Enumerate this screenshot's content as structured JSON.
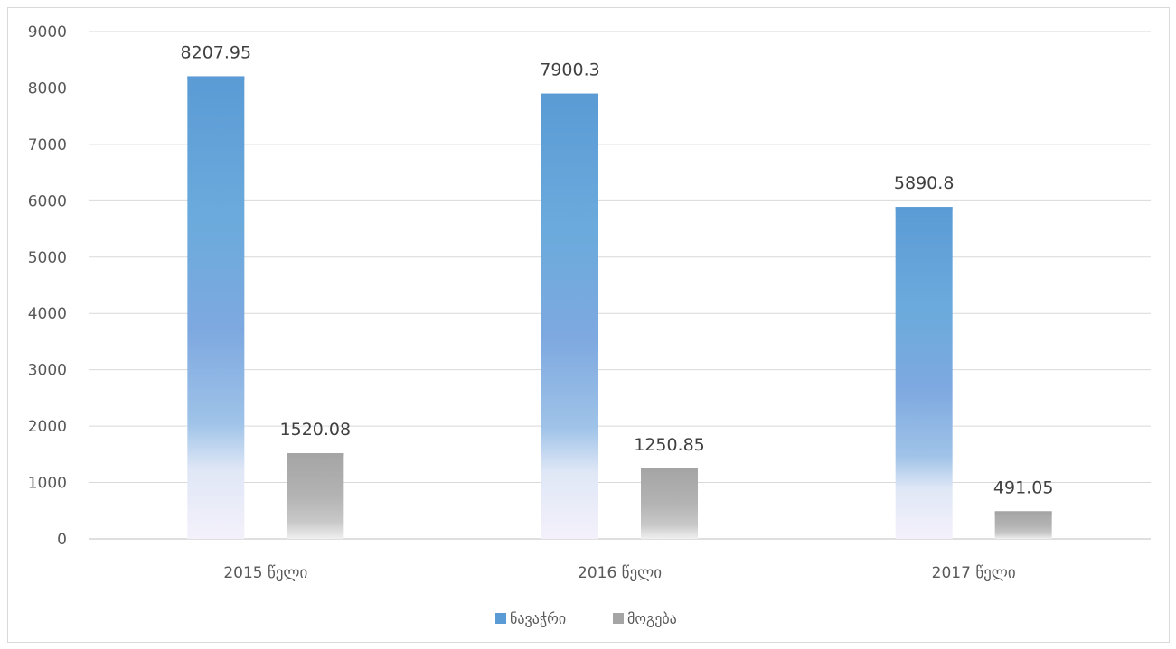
{
  "chart_data": {
    "type": "bar",
    "categories": [
      "2015 წელი",
      "2016 წელი",
      "2017 წელი"
    ],
    "series": [
      {
        "name": "ნავაჭრი",
        "values": [
          8207.95,
          7900.3,
          5890.8
        ],
        "color": "#5b9bd5"
      },
      {
        "name": "მოგება",
        "values": [
          1520.08,
          1250.85,
          491.05
        ],
        "color": "#a5a5a5"
      }
    ],
    "data_labels": [
      [
        "8207.95",
        "7900.3",
        "5890.8"
      ],
      [
        "1520.08",
        "1250.85",
        "491.05"
      ]
    ],
    "ylim": [
      0,
      9000
    ],
    "y_ticks": [
      0,
      1000,
      2000,
      3000,
      4000,
      5000,
      6000,
      7000,
      8000,
      9000
    ],
    "grid": true,
    "legend_position": "bottom"
  }
}
